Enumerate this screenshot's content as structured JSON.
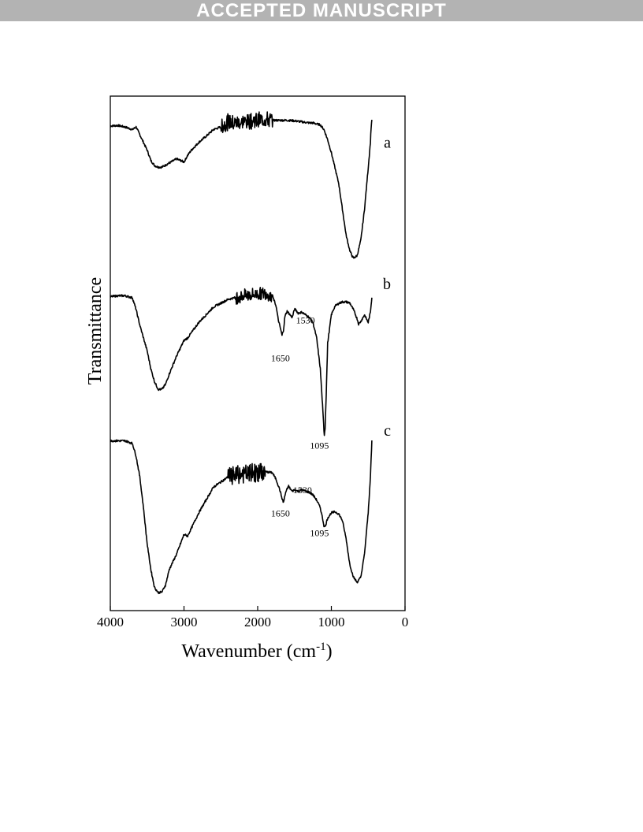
{
  "banner": {
    "text": "ACCEPTED MANUSCRIPT"
  },
  "chart_data": {
    "type": "line",
    "title": "",
    "xlabel": "Wavenumber (cm",
    "xlabel_sup": "-1",
    "xlabel_close": ")",
    "ylabel": "Transmittance",
    "xlim": [
      4000,
      0
    ],
    "x_reversed": true,
    "ylim": [
      0,
      1
    ],
    "y_ticks_shown": false,
    "grid": false,
    "x_ticks": [
      {
        "value": 4000,
        "label": "4000"
      },
      {
        "value": 3000,
        "label": "3000"
      },
      {
        "value": 2000,
        "label": "2000"
      },
      {
        "value": 1000,
        "label": "1000"
      },
      {
        "value": 0,
        "label": "0"
      }
    ],
    "series": [
      {
        "label": "a",
        "label_pos": [
          150,
          0.9
        ],
        "noise": {
          "from": 2500,
          "to": 1800,
          "amp": 0.015
        },
        "x": [
          4000,
          3900,
          3800,
          3700,
          3650,
          3600,
          3500,
          3450,
          3400,
          3350,
          3300,
          3200,
          3100,
          3000,
          2950,
          2900,
          2800,
          2700,
          2600,
          2500,
          2400,
          2300,
          2200,
          2100,
          2000,
          1900,
          1800,
          1700,
          1600,
          1500,
          1400,
          1300,
          1250,
          1200,
          1150,
          1100,
          1050,
          1000,
          950,
          900,
          850,
          800,
          750,
          720,
          700,
          650,
          600,
          550,
          500,
          470,
          460,
          450
        ],
        "y": [
          0.942,
          0.943,
          0.94,
          0.935,
          0.94,
          0.925,
          0.895,
          0.875,
          0.865,
          0.862,
          0.862,
          0.87,
          0.878,
          0.872,
          0.885,
          0.895,
          0.91,
          0.922,
          0.935,
          0.94,
          0.95,
          0.948,
          0.95,
          0.952,
          0.953,
          0.955,
          0.953,
          0.953,
          0.953,
          0.952,
          0.95,
          0.948,
          0.948,
          0.946,
          0.944,
          0.935,
          0.915,
          0.89,
          0.86,
          0.83,
          0.78,
          0.73,
          0.7,
          0.69,
          0.685,
          0.69,
          0.72,
          0.78,
          0.86,
          0.91,
          0.94,
          0.955
        ]
      },
      {
        "label": "b",
        "label_pos": [
          150,
          0.625
        ],
        "noise": {
          "from": 2300,
          "to": 1800,
          "amp": 0.012
        },
        "x": [
          4000,
          3900,
          3800,
          3700,
          3650,
          3600,
          3500,
          3450,
          3400,
          3350,
          3300,
          3250,
          3200,
          3100,
          3000,
          2950,
          2900,
          2800,
          2600,
          2400,
          2200,
          2000,
          1900,
          1800,
          1750,
          1720,
          1690,
          1670,
          1650,
          1630,
          1600,
          1550,
          1530,
          1500,
          1480,
          1450,
          1400,
          1350,
          1300,
          1250,
          1200,
          1150,
          1120,
          1100,
          1095,
          1085,
          1070,
          1050,
          1000,
          950,
          900,
          850,
          800,
          750,
          700,
          650,
          630,
          600,
          550,
          500,
          470,
          450
        ],
        "y": [
          0.61,
          0.612,
          0.612,
          0.608,
          0.585,
          0.555,
          0.505,
          0.47,
          0.445,
          0.43,
          0.43,
          0.44,
          0.46,
          0.495,
          0.525,
          0.53,
          0.54,
          0.56,
          0.59,
          0.605,
          0.612,
          0.615,
          0.617,
          0.612,
          0.592,
          0.565,
          0.548,
          0.535,
          0.545,
          0.572,
          0.582,
          0.573,
          0.57,
          0.586,
          0.584,
          0.578,
          0.58,
          0.575,
          0.57,
          0.56,
          0.53,
          0.47,
          0.4,
          0.35,
          0.342,
          0.355,
          0.42,
          0.52,
          0.575,
          0.592,
          0.597,
          0.6,
          0.6,
          0.598,
          0.585,
          0.567,
          0.557,
          0.562,
          0.575,
          0.56,
          0.58,
          0.61
        ]
      },
      {
        "label": "c",
        "label_pos": [
          150,
          0.34
        ],
        "noise": {
          "from": 2400,
          "to": 1900,
          "amp": 0.018
        },
        "x": [
          4000,
          3900,
          3800,
          3700,
          3650,
          3600,
          3550,
          3500,
          3450,
          3400,
          3350,
          3300,
          3250,
          3200,
          3100,
          3000,
          2950,
          2900,
          2800,
          2600,
          2400,
          2200,
          2000,
          1900,
          1800,
          1750,
          1700,
          1670,
          1650,
          1620,
          1580,
          1550,
          1530,
          1500,
          1450,
          1400,
          1350,
          1300,
          1250,
          1200,
          1150,
          1120,
          1100,
          1095,
          1080,
          1050,
          1000,
          950,
          900,
          850,
          800,
          750,
          700,
          650,
          600,
          550,
          500,
          470,
          450
        ],
        "y": [
          0.33,
          0.33,
          0.33,
          0.325,
          0.3,
          0.26,
          0.2,
          0.13,
          0.08,
          0.045,
          0.035,
          0.036,
          0.05,
          0.08,
          0.11,
          0.148,
          0.145,
          0.16,
          0.19,
          0.24,
          0.26,
          0.265,
          0.268,
          0.27,
          0.268,
          0.255,
          0.235,
          0.218,
          0.21,
          0.23,
          0.242,
          0.235,
          0.232,
          0.235,
          0.232,
          0.235,
          0.232,
          0.23,
          0.225,
          0.215,
          0.2,
          0.18,
          0.165,
          0.162,
          0.165,
          0.18,
          0.19,
          0.192,
          0.188,
          0.175,
          0.14,
          0.09,
          0.065,
          0.055,
          0.065,
          0.11,
          0.19,
          0.26,
          0.33
        ]
      }
    ],
    "annotations": [
      {
        "text": "1530",
        "x": 1480,
        "y": 0.558,
        "anchor": "start"
      },
      {
        "text": "1650",
        "x": 1820,
        "y": 0.485,
        "anchor": "start"
      },
      {
        "text": "1095",
        "x": 1290,
        "y": 0.315,
        "anchor": "start"
      },
      {
        "text": "1530",
        "x": 1520,
        "y": 0.228,
        "anchor": "start"
      },
      {
        "text": "1650",
        "x": 1820,
        "y": 0.183,
        "anchor": "start"
      },
      {
        "text": "1095",
        "x": 1290,
        "y": 0.145,
        "anchor": "start"
      }
    ]
  }
}
